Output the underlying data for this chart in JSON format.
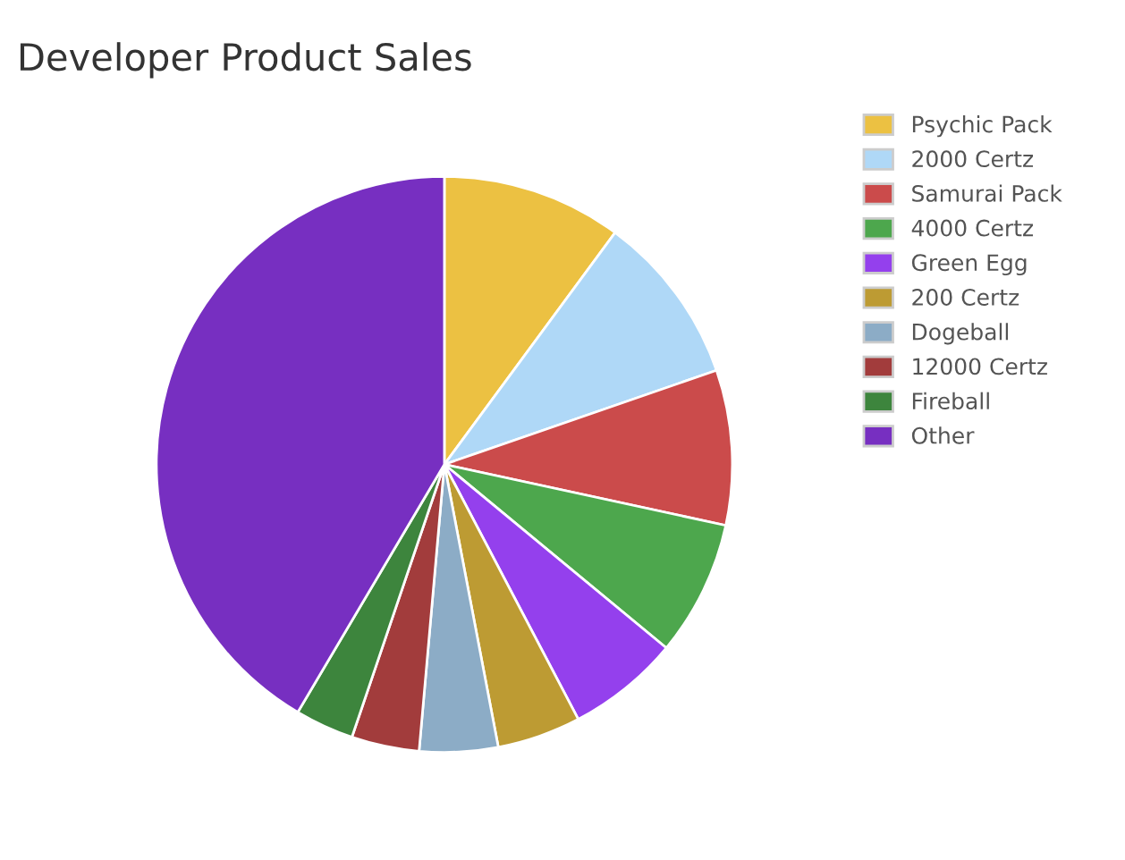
{
  "chart_data": {
    "type": "pie",
    "title": "Developer Product Sales",
    "categories": [
      "Psychic Pack",
      "2000 Certz",
      "Samurai Pack",
      "4000 Certz",
      "Green Egg",
      "200 Certz",
      "Dogeball",
      "12000 Certz",
      "Fireball",
      "Other"
    ],
    "values": [
      10.1,
      9.6,
      8.7,
      7.6,
      6.3,
      4.7,
      4.4,
      3.8,
      3.3,
      41.5
    ],
    "colors": [
      "#ecc142",
      "#afd8f7",
      "#cb4b4b",
      "#4da74d",
      "#9440ed",
      "#bd9b33",
      "#8cacc6",
      "#a23c3c",
      "#3d853d",
      "#772fc1"
    ],
    "legend": "top right"
  }
}
